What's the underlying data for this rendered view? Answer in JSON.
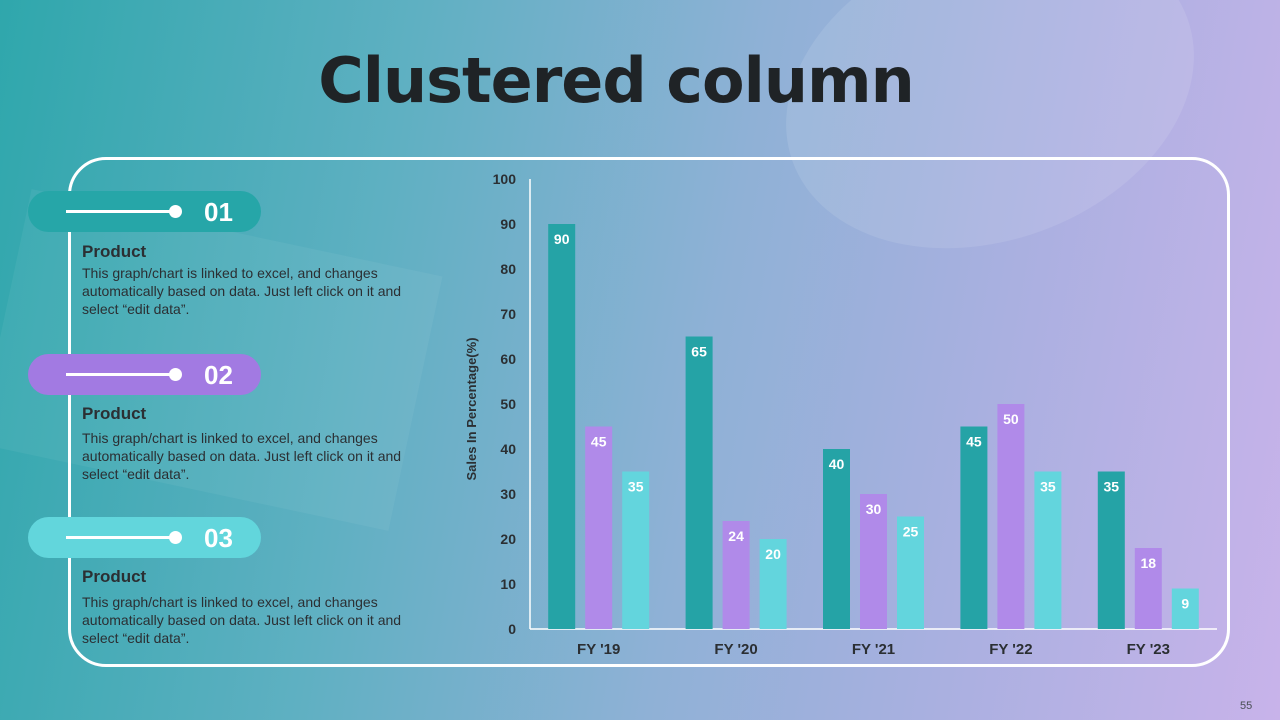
{
  "slide": {
    "title": "Clustered column",
    "page_number": "55"
  },
  "items": [
    {
      "number": "01",
      "title": "Product",
      "desc": "This graph/chart is linked to excel, and changes automatically based on data. Just left click on it and select “edit data”.",
      "color": "#26a6a8"
    },
    {
      "number": "02",
      "title": "Product",
      "desc": "This graph/chart is linked to excel, and changes automatically based on data. Just left click on it and select “edit data”.",
      "color": "#a27ae2"
    },
    {
      "number": "03",
      "title": "Product",
      "desc": "This graph/chart is linked to excel, and changes automatically based on data. Just left click on it and select “edit data”.",
      "color": "#62d6dc"
    }
  ],
  "chart_data": {
    "type": "bar",
    "title": "",
    "xlabel": "",
    "ylabel": "Sales In Percentage(%)",
    "ylim": [
      0,
      100
    ],
    "yticks": [
      0,
      10,
      20,
      30,
      40,
      50,
      60,
      70,
      80,
      90,
      100
    ],
    "categories": [
      "FY '19",
      "FY '20",
      "FY '21",
      "FY '22",
      "FY '23"
    ],
    "series": [
      {
        "values": [
          90,
          65,
          40,
          45,
          35
        ],
        "color": "#25a3a6"
      },
      {
        "values": [
          45,
          24,
          30,
          50,
          18
        ],
        "color": "#b08ae9"
      },
      {
        "values": [
          35,
          20,
          25,
          35,
          9
        ],
        "color": "#63d5dd"
      }
    ],
    "data_labels": true,
    "grid": false,
    "legend": "none"
  }
}
